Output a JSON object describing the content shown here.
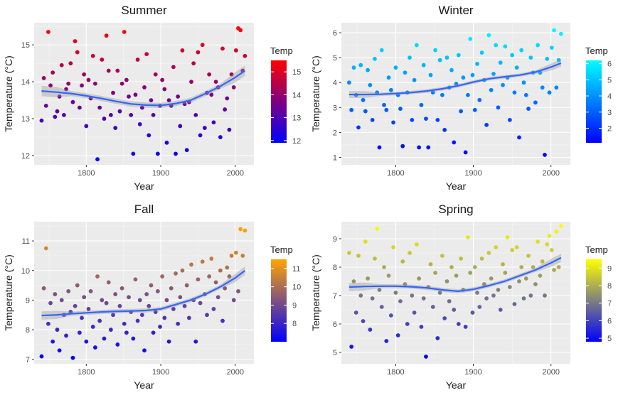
{
  "chart_data": [
    {
      "type": "scatter",
      "title": "Summer",
      "xlabel": "Year",
      "ylabel": "Temperature (°C)",
      "legend_title": "Temp",
      "legend_ticks": [
        12,
        13,
        14,
        15
      ],
      "color_low": "#0000FF",
      "color_high": "#FF0000",
      "color_range": [
        11.9,
        15.5
      ],
      "xlim": [
        1730,
        2025
      ],
      "ylim": [
        11.75,
        15.6
      ],
      "xticks": [
        1800,
        1900,
        2000
      ],
      "yticks": [
        12,
        13,
        14,
        15
      ],
      "trend": {
        "x": [
          1740,
          1760,
          1780,
          1800,
          1820,
          1840,
          1860,
          1880,
          1900,
          1920,
          1940,
          1960,
          1980,
          2000,
          2013
        ],
        "y": [
          13.75,
          13.72,
          13.68,
          13.62,
          13.55,
          13.47,
          13.4,
          13.37,
          13.36,
          13.41,
          13.5,
          13.68,
          13.88,
          14.12,
          14.3
        ]
      },
      "points": {
        "x": [
          1740,
          1743,
          1746,
          1749,
          1752,
          1755,
          1758,
          1761,
          1764,
          1767,
          1770,
          1773,
          1776,
          1779,
          1782,
          1785,
          1788,
          1791,
          1794,
          1797,
          1800,
          1803,
          1806,
          1809,
          1812,
          1815,
          1818,
          1821,
          1824,
          1827,
          1830,
          1833,
          1836,
          1839,
          1842,
          1845,
          1848,
          1851,
          1854,
          1857,
          1860,
          1863,
          1866,
          1869,
          1872,
          1875,
          1878,
          1881,
          1884,
          1887,
          1890,
          1893,
          1896,
          1899,
          1902,
          1905,
          1908,
          1911,
          1914,
          1917,
          1920,
          1923,
          1926,
          1929,
          1932,
          1935,
          1938,
          1941,
          1944,
          1947,
          1950,
          1953,
          1956,
          1959,
          1962,
          1965,
          1968,
          1971,
          1974,
          1977,
          1980,
          1983,
          1986,
          1989,
          1992,
          1995,
          1998,
          2001,
          2004,
          2007,
          2010,
          2013
        ],
        "y": [
          12.95,
          14.1,
          13.35,
          15.35,
          13.9,
          14.25,
          13.05,
          13.2,
          13.6,
          14.45,
          13.1,
          13.8,
          13.95,
          14.5,
          13.45,
          15.1,
          14.8,
          13.3,
          13.9,
          14.2,
          12.8,
          14.05,
          13.55,
          14.7,
          13.95,
          11.9,
          13.3,
          14.6,
          13.0,
          15.25,
          14.3,
          13.1,
          13.7,
          12.75,
          14.3,
          13.2,
          13.95,
          15.35,
          14.05,
          13.6,
          13.1,
          12.05,
          13.65,
          14.6,
          12.85,
          13.3,
          13.85,
          14.75,
          12.55,
          13.5,
          13.1,
          14.2,
          12.05,
          13.35,
          14.05,
          13.8,
          12.35,
          13.5,
          13.35,
          14.4,
          12.05,
          13.6,
          12.8,
          14.85,
          13.4,
          12.15,
          13.45,
          14.0,
          14.5,
          13.1,
          14.8,
          12.55,
          15.0,
          12.75,
          13.7,
          14.2,
          13.65,
          12.9,
          14.0,
          13.85,
          12.5,
          14.9,
          13.25,
          13.55,
          12.7,
          14.2,
          13.85,
          14.85,
          15.45,
          15.4,
          14.3,
          14.7
        ]
      }
    },
    {
      "type": "scatter",
      "title": "Winter",
      "xlabel": "Year",
      "ylabel": "Temperature (°C)",
      "legend_title": "Temp",
      "legend_ticks": [
        2,
        3,
        4,
        5,
        6
      ],
      "color_low": "#0000FF",
      "color_high": "#00FFFF",
      "color_range": [
        1.1,
        6.2
      ],
      "xlim": [
        1730,
        2025
      ],
      "ylim": [
        0.7,
        6.4
      ],
      "xticks": [
        1800,
        1900,
        2000
      ],
      "yticks": [
        1,
        2,
        3,
        4,
        5,
        6
      ],
      "trend": {
        "x": [
          1740,
          1760,
          1780,
          1800,
          1820,
          1840,
          1860,
          1880,
          1900,
          1920,
          1940,
          1960,
          1980,
          2000,
          2013
        ],
        "y": [
          3.52,
          3.52,
          3.53,
          3.56,
          3.6,
          3.66,
          3.75,
          3.87,
          4.02,
          4.15,
          4.23,
          4.3,
          4.42,
          4.62,
          4.78
        ]
      },
      "points": {
        "x": [
          1740,
          1743,
          1746,
          1749,
          1752,
          1755,
          1758,
          1761,
          1764,
          1767,
          1770,
          1773,
          1776,
          1779,
          1782,
          1785,
          1788,
          1791,
          1794,
          1797,
          1800,
          1803,
          1806,
          1809,
          1812,
          1815,
          1818,
          1821,
          1824,
          1827,
          1830,
          1833,
          1836,
          1839,
          1842,
          1845,
          1848,
          1851,
          1854,
          1857,
          1860,
          1863,
          1866,
          1869,
          1872,
          1875,
          1878,
          1881,
          1884,
          1887,
          1890,
          1893,
          1896,
          1899,
          1902,
          1905,
          1908,
          1911,
          1914,
          1917,
          1920,
          1923,
          1926,
          1929,
          1932,
          1935,
          1938,
          1941,
          1944,
          1947,
          1950,
          1953,
          1956,
          1959,
          1962,
          1965,
          1968,
          1971,
          1974,
          1977,
          1980,
          1983,
          1986,
          1989,
          1992,
          1995,
          1998,
          2001,
          2004,
          2007,
          2010,
          2013
        ],
        "y": [
          4.0,
          2.9,
          4.6,
          3.5,
          2.2,
          4.7,
          3.3,
          2.85,
          4.5,
          3.9,
          2.5,
          4.95,
          3.6,
          1.4,
          5.3,
          3.1,
          2.9,
          4.2,
          3.7,
          2.4,
          4.6,
          3.5,
          2.95,
          1.45,
          4.4,
          3.6,
          5.0,
          2.5,
          4.1,
          5.5,
          1.4,
          3.1,
          4.7,
          2.55,
          1.4,
          4.3,
          3.6,
          5.3,
          2.5,
          4.9,
          3.5,
          2.1,
          5.0,
          3.8,
          4.5,
          1.6,
          3.95,
          5.1,
          2.85,
          4.2,
          1.2,
          3.5,
          5.75,
          4.3,
          2.9,
          4.75,
          3.3,
          5.2,
          4.1,
          2.3,
          5.9,
          3.7,
          4.35,
          5.5,
          3.0,
          4.8,
          3.9,
          5.45,
          4.2,
          2.5,
          5.1,
          3.6,
          4.6,
          1.8,
          5.3,
          4.0,
          3.5,
          2.95,
          5.0,
          4.4,
          3.2,
          5.5,
          4.4,
          3.8,
          1.1,
          4.95,
          3.6,
          5.4,
          6.1,
          3.8,
          4.9,
          5.95
        ]
      }
    },
    {
      "type": "scatter",
      "title": "Fall",
      "xlabel": "Year",
      "ylabel": "Temperature (°C)",
      "legend_title": "Temp",
      "legend_ticks": [
        8,
        9,
        10,
        11
      ],
      "color_low": "#0000FF",
      "color_high": "#FFA500",
      "color_range": [
        7.0,
        11.5
      ],
      "xlim": [
        1730,
        2025
      ],
      "ylim": [
        6.85,
        11.65
      ],
      "xticks": [
        1800,
        1900,
        2000
      ],
      "yticks": [
        7,
        8,
        9,
        10,
        11
      ],
      "trend": {
        "x": [
          1740,
          1760,
          1780,
          1800,
          1820,
          1840,
          1860,
          1880,
          1900,
          1920,
          1940,
          1960,
          1980,
          2000,
          2013
        ],
        "y": [
          8.48,
          8.5,
          8.54,
          8.57,
          8.6,
          8.62,
          8.63,
          8.65,
          8.7,
          8.85,
          9.0,
          9.2,
          9.45,
          9.75,
          10.0
        ]
      },
      "points": {
        "x": [
          1740,
          1743,
          1746,
          1749,
          1752,
          1755,
          1758,
          1761,
          1764,
          1767,
          1770,
          1773,
          1776,
          1779,
          1782,
          1785,
          1788,
          1791,
          1794,
          1797,
          1800,
          1803,
          1806,
          1809,
          1812,
          1815,
          1818,
          1821,
          1824,
          1827,
          1830,
          1833,
          1836,
          1839,
          1842,
          1845,
          1848,
          1851,
          1854,
          1857,
          1860,
          1863,
          1866,
          1869,
          1872,
          1875,
          1878,
          1881,
          1884,
          1887,
          1890,
          1893,
          1896,
          1899,
          1902,
          1905,
          1908,
          1911,
          1914,
          1917,
          1920,
          1923,
          1926,
          1929,
          1932,
          1935,
          1938,
          1941,
          1944,
          1947,
          1950,
          1953,
          1956,
          1959,
          1962,
          1965,
          1968,
          1971,
          1974,
          1977,
          1980,
          1983,
          1986,
          1989,
          1992,
          1995,
          1998,
          2001,
          2004,
          2007,
          2010,
          2013
        ],
        "y": [
          7.1,
          9.4,
          10.75,
          8.2,
          8.9,
          7.6,
          9.2,
          8.0,
          7.3,
          9.0,
          8.5,
          7.8,
          9.3,
          8.6,
          7.05,
          8.8,
          9.5,
          7.9,
          8.4,
          9.1,
          7.6,
          8.7,
          9.3,
          8.1,
          7.4,
          9.8,
          8.3,
          9.0,
          7.7,
          8.9,
          9.6,
          8.0,
          8.5,
          9.2,
          7.5,
          8.8,
          9.4,
          8.2,
          7.9,
          9.1,
          8.6,
          7.7,
          9.7,
          8.3,
          9.0,
          8.5,
          7.3,
          9.2,
          8.8,
          9.5,
          7.9,
          8.6,
          9.3,
          8.1,
          9.8,
          8.4,
          9.0,
          7.6,
          9.4,
          8.7,
          9.9,
          8.2,
          9.1,
          10.0,
          8.8,
          9.5,
          8.4,
          10.2,
          9.0,
          7.6,
          9.7,
          8.9,
          10.3,
          9.2,
          8.5,
          9.8,
          10.4,
          8.7,
          9.6,
          9.1,
          10.0,
          8.3,
          9.4,
          10.1,
          9.8,
          10.5,
          9.0,
          10.6,
          9.3,
          11.4,
          10.5,
          11.35
        ]
      }
    },
    {
      "type": "scatter",
      "title": "Spring",
      "xlabel": "Year",
      "ylabel": "Temperature (°C)",
      "legend_title": "Temp",
      "legend_ticks": [
        5,
        6,
        7,
        8,
        9
      ],
      "color_low": "#0000FF",
      "color_high": "#FFFF00",
      "color_range": [
        4.8,
        9.5
      ],
      "xlim": [
        1730,
        2025
      ],
      "ylim": [
        4.6,
        9.6
      ],
      "xticks": [
        1800,
        1900,
        2000
      ],
      "yticks": [
        5,
        6,
        7,
        8,
        9
      ],
      "trend": {
        "x": [
          1740,
          1760,
          1780,
          1800,
          1820,
          1840,
          1860,
          1880,
          1900,
          1920,
          1940,
          1960,
          1980,
          2000,
          2013
        ],
        "y": [
          7.3,
          7.32,
          7.33,
          7.33,
          7.31,
          7.27,
          7.2,
          7.15,
          7.22,
          7.35,
          7.5,
          7.7,
          7.9,
          8.15,
          8.33
        ]
      },
      "points": {
        "x": [
          1740,
          1743,
          1746,
          1749,
          1752,
          1755,
          1758,
          1761,
          1764,
          1767,
          1770,
          1773,
          1776,
          1779,
          1782,
          1785,
          1788,
          1791,
          1794,
          1797,
          1800,
          1803,
          1806,
          1809,
          1812,
          1815,
          1818,
          1821,
          1824,
          1827,
          1830,
          1833,
          1836,
          1839,
          1842,
          1845,
          1848,
          1851,
          1854,
          1857,
          1860,
          1863,
          1866,
          1869,
          1872,
          1875,
          1878,
          1881,
          1884,
          1887,
          1890,
          1893,
          1896,
          1899,
          1902,
          1905,
          1908,
          1911,
          1914,
          1917,
          1920,
          1923,
          1926,
          1929,
          1932,
          1935,
          1938,
          1941,
          1944,
          1947,
          1950,
          1953,
          1956,
          1959,
          1962,
          1965,
          1968,
          1971,
          1974,
          1977,
          1980,
          1983,
          1986,
          1989,
          1992,
          1995,
          1998,
          2001,
          2004,
          2007,
          2010,
          2013
        ],
        "y": [
          8.5,
          5.2,
          7.5,
          6.4,
          8.4,
          7.0,
          6.1,
          8.9,
          7.6,
          5.8,
          6.9,
          8.3,
          9.35,
          7.2,
          6.6,
          8.0,
          5.4,
          7.7,
          6.3,
          8.7,
          7.1,
          5.6,
          6.8,
          8.2,
          7.4,
          6.0,
          8.5,
          7.0,
          6.4,
          8.8,
          7.6,
          5.9,
          6.9,
          4.85,
          7.3,
          8.1,
          6.6,
          7.8,
          5.5,
          7.1,
          8.4,
          6.2,
          7.5,
          6.8,
          8.0,
          6.5,
          7.7,
          6.0,
          8.3,
          7.2,
          5.9,
          9.05,
          7.8,
          6.4,
          8.0,
          7.1,
          6.6,
          8.3,
          7.4,
          6.9,
          8.5,
          7.6,
          7.0,
          8.7,
          7.2,
          6.5,
          8.1,
          7.8,
          9.05,
          7.3,
          8.6,
          6.7,
          8.7,
          7.5,
          8.0,
          6.9,
          7.6,
          8.4,
          7.0,
          8.0,
          7.4,
          8.9,
          7.7,
          8.2,
          7.0,
          8.8,
          9.1,
          8.6,
          7.9,
          9.25,
          8.0,
          9.45
        ]
      }
    }
  ]
}
